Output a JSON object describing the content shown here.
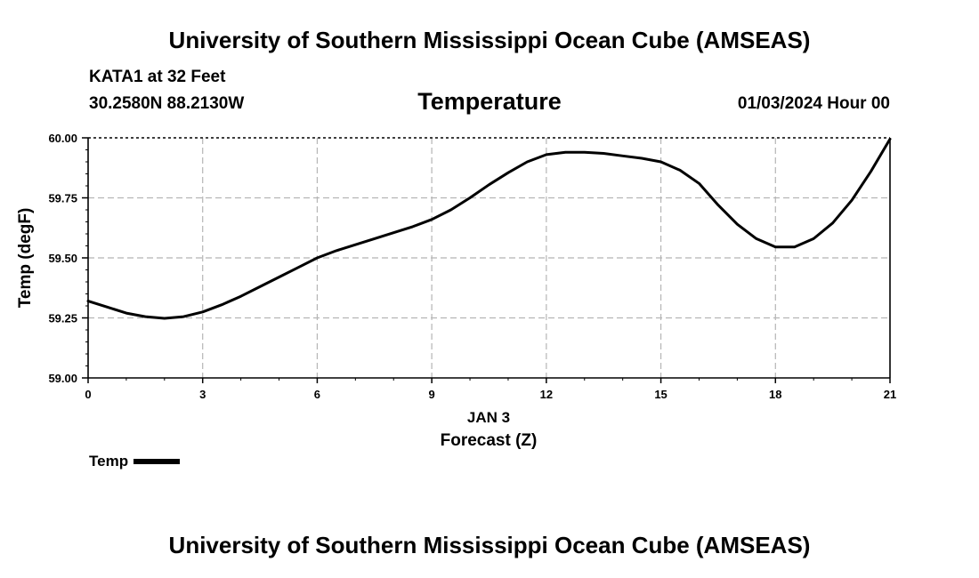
{
  "header": {
    "title": "University of Southern Mississippi Ocean Cube (AMSEAS)",
    "station": "KATA1 at 32 Feet",
    "coords": "30.2580N  88.2130W",
    "variable": "Temperature",
    "datetime": "01/03/2024 Hour 00"
  },
  "footer": {
    "title": "University of Southern Mississippi Ocean Cube (AMSEAS)"
  },
  "chart_data": {
    "type": "line",
    "title": "Temperature",
    "xlabel": "Forecast (Z)",
    "xlabel_date": "JAN 3",
    "ylabel": "Temp (degF)",
    "xlim": [
      0,
      21
    ],
    "ylim": [
      59.0,
      60.0
    ],
    "xticks": [
      0,
      3,
      6,
      9,
      12,
      15,
      18,
      21
    ],
    "yticks": [
      "59.00",
      "59.25",
      "59.50",
      "59.75",
      "60.00"
    ],
    "grid": true,
    "legend_position": "bottom-left",
    "series": [
      {
        "name": "Temp",
        "color": "#000000",
        "x": [
          0,
          0.5,
          1,
          1.5,
          2,
          2.5,
          3,
          3.5,
          4,
          4.5,
          5,
          5.5,
          6,
          6.5,
          7,
          7.5,
          8,
          8.5,
          9,
          9.5,
          10,
          10.5,
          11,
          11.5,
          12,
          12.5,
          13,
          13.5,
          14,
          14.5,
          15,
          15.5,
          16,
          16.5,
          17,
          17.5,
          18,
          18.5,
          19,
          19.5,
          20,
          20.5,
          21
        ],
        "values": [
          59.32,
          59.295,
          59.27,
          59.255,
          59.248,
          59.255,
          59.275,
          59.305,
          59.34,
          59.38,
          59.42,
          59.46,
          59.5,
          59.53,
          59.555,
          59.58,
          59.605,
          59.63,
          59.66,
          59.7,
          59.75,
          59.805,
          59.855,
          59.9,
          59.93,
          59.94,
          59.94,
          59.935,
          59.925,
          59.915,
          59.9,
          59.865,
          59.81,
          59.72,
          59.64,
          59.58,
          59.545,
          59.545,
          59.58,
          59.645,
          59.74,
          59.86,
          59.995
        ]
      }
    ]
  }
}
